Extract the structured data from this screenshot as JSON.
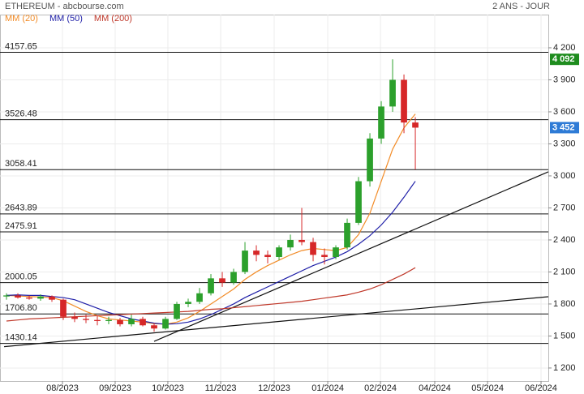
{
  "chart_data": {
    "type": "candlestick",
    "title": "ETHEREUM - abcbourse.com",
    "period": "2 ANS - JOUR",
    "categories": [
      null,
      null,
      null,
      null,
      null,
      null,
      null,
      null,
      null,
      null,
      null,
      null,
      null,
      null,
      null,
      null,
      null,
      null,
      null,
      null,
      null,
      null,
      null,
      null,
      null,
      null,
      null,
      null,
      null,
      null,
      null,
      null,
      null,
      null,
      null,
      null,
      null
    ],
    "open": [
      1870,
      1880,
      1860,
      1850,
      1870,
      1840,
      1680,
      1660,
      1650,
      1640,
      1650,
      1610,
      1660,
      1600,
      1570,
      1660,
      1800,
      1820,
      1900,
      2040,
      2000,
      2100,
      2300,
      2260,
      2240,
      2330,
      2400,
      2380,
      2260,
      2240,
      2330,
      2560,
      2950,
      3350,
      3650,
      3900,
      3500
    ],
    "high": [
      1900,
      1900,
      1880,
      1890,
      1880,
      1850,
      1720,
      1700,
      1690,
      1680,
      1670,
      1700,
      1680,
      1620,
      1680,
      1820,
      1850,
      1950,
      2080,
      2100,
      2130,
      2380,
      2350,
      2300,
      2350,
      2450,
      2700,
      2420,
      2320,
      2350,
      2600,
      2990,
      3400,
      3700,
      4092,
      3950,
      3550
    ],
    "low": [
      1840,
      1850,
      1840,
      1830,
      1820,
      1650,
      1630,
      1620,
      1600,
      1610,
      1590,
      1590,
      1590,
      1540,
      1560,
      1650,
      1770,
      1800,
      1880,
      1960,
      1980,
      2080,
      2200,
      2180,
      2210,
      2300,
      2350,
      2200,
      2170,
      2220,
      2310,
      2540,
      2900,
      3300,
      3600,
      3400,
      3060
    ],
    "close": [
      1880,
      1860,
      1850,
      1870,
      1840,
      1680,
      1660,
      1650,
      1640,
      1650,
      1610,
      1660,
      1600,
      1570,
      1660,
      1800,
      1820,
      1900,
      2040,
      2000,
      2100,
      2300,
      2260,
      2240,
      2330,
      2400,
      2380,
      2260,
      2240,
      2330,
      2560,
      2950,
      3350,
      3650,
      3900,
      3500,
      3452
    ],
    "up_color": "#2ca02c",
    "down_color": "#d62728",
    "series": [
      {
        "name": "MM (20)",
        "color": "#f28c28",
        "values": [
          1880,
          1875,
          1870,
          1865,
          1860,
          1830,
          1780,
          1730,
          1690,
          1660,
          1650,
          1640,
          1630,
          1615,
          1610,
          1630,
          1670,
          1730,
          1800,
          1870,
          1940,
          2030,
          2100,
          2160,
          2210,
          2260,
          2300,
          2320,
          2310,
          2300,
          2330,
          2450,
          2650,
          2950,
          3250,
          3450,
          3580
        ]
      },
      {
        "name": "MM (50)",
        "color": "#1f1fa8",
        "values": [
          1880,
          1885,
          1880,
          1880,
          1870,
          1860,
          1840,
          1800,
          1760,
          1720,
          1690,
          1660,
          1640,
          1620,
          1610,
          1615,
          1630,
          1660,
          1700,
          1750,
          1800,
          1860,
          1910,
          1960,
          2010,
          2060,
          2110,
          2160,
          2200,
          2240,
          2290,
          2360,
          2440,
          2540,
          2660,
          2800,
          2950
        ]
      },
      {
        "name": "MM (200)",
        "color": "#c0392b",
        "values": [
          1640,
          1650,
          1660,
          1665,
          1670,
          1675,
          1680,
          1685,
          1690,
          1695,
          1700,
          1705,
          1710,
          1715,
          1720,
          1725,
          1730,
          1740,
          1750,
          1755,
          1765,
          1775,
          1785,
          1795,
          1805,
          1815,
          1825,
          1840,
          1855,
          1870,
          1885,
          1910,
          1940,
          1980,
          2030,
          2080,
          2140
        ]
      }
    ],
    "levels": [
      4157.65,
      3526.48,
      3058.41,
      2643.89,
      2475.91,
      2000.05,
      {
        "value": 1706.8,
        "label": "1706.80"
      },
      1430.14
    ],
    "trend_lines": [
      {
        "x": [
          -0.21,
          47.71
        ],
        "y": [
          1400,
          1868
        ]
      },
      {
        "x": [
          13,
          47.71
        ],
        "y": [
          1450,
          3038
        ]
      }
    ],
    "price_badges": [
      {
        "value": 4092,
        "label": "4 092",
        "color": "#1e8c1e"
      },
      {
        "value": 3452,
        "label": "3 452",
        "color": "#2e7bd6"
      }
    ],
    "xlim": [
      -0.571,
      47.71
    ],
    "xticks": [
      {
        "value": 4.93,
        "label": "08/2023"
      },
      {
        "value": 9.57,
        "label": "09/2023"
      },
      {
        "value": 14.21,
        "label": "10/2023"
      },
      {
        "value": 18.86,
        "label": "11/2023"
      },
      {
        "value": 23.57,
        "label": "12/2023"
      },
      {
        "value": 28.29,
        "label": "01/2024"
      },
      {
        "value": 32.93,
        "label": "02/2024"
      },
      {
        "value": 37.71,
        "label": "04/2024"
      },
      {
        "value": 42.36,
        "label": "05/2024"
      },
      {
        "value": 47.07,
        "label": "06/2024"
      }
    ],
    "ylim": [
      1078,
      4420
    ],
    "yticks": [
      {
        "value": 1200,
        "label": "1 200"
      },
      {
        "value": 1500,
        "label": "1 500"
      },
      {
        "value": 1800,
        "label": "1 800"
      },
      {
        "value": 2100,
        "label": "2 100"
      },
      {
        "value": 2400,
        "label": "2 400"
      },
      {
        "value": 2700,
        "label": "2 700"
      },
      {
        "value": 3000,
        "label": "3 000"
      },
      {
        "value": 3300,
        "label": "3 300"
      },
      {
        "value": 3600,
        "label": "3 600"
      },
      {
        "value": 3900,
        "label": "3 900"
      },
      {
        "value": 4200,
        "label": "4 200"
      }
    ],
    "grid": true
  }
}
